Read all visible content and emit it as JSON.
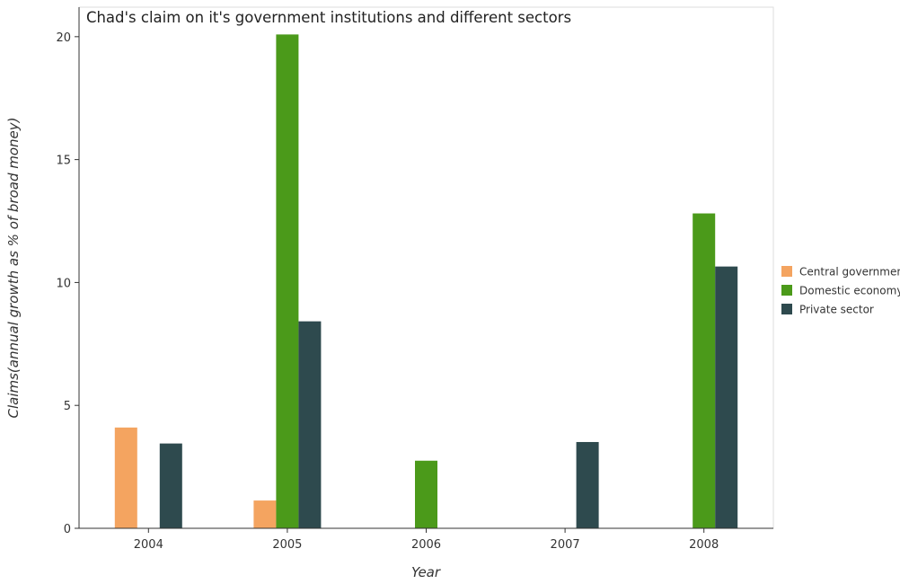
{
  "chart_data": {
    "type": "bar",
    "title": "Chad's claim on it's government institutions and different sectors",
    "xlabel": "Year",
    "ylabel": "Claims(annual growth as % of broad money)",
    "categories": [
      "2004",
      "2005",
      "2006",
      "2007",
      "2008"
    ],
    "ylim": [
      0,
      21.2
    ],
    "yticks": [
      0,
      5,
      10,
      15,
      20
    ],
    "grid": false,
    "legend_position": "right",
    "series": [
      {
        "name": "Central government",
        "color": "#f4a460",
        "values": [
          4.1,
          1.13,
          0,
          0,
          0
        ]
      },
      {
        "name": "Domestic economy",
        "color": "#4b9a1a",
        "values": [
          0,
          20.09,
          2.75,
          0,
          12.81
        ]
      },
      {
        "name": "Private sector",
        "color": "#2e4a4e",
        "values": [
          3.45,
          8.42,
          0,
          3.51,
          10.65
        ]
      }
    ]
  }
}
